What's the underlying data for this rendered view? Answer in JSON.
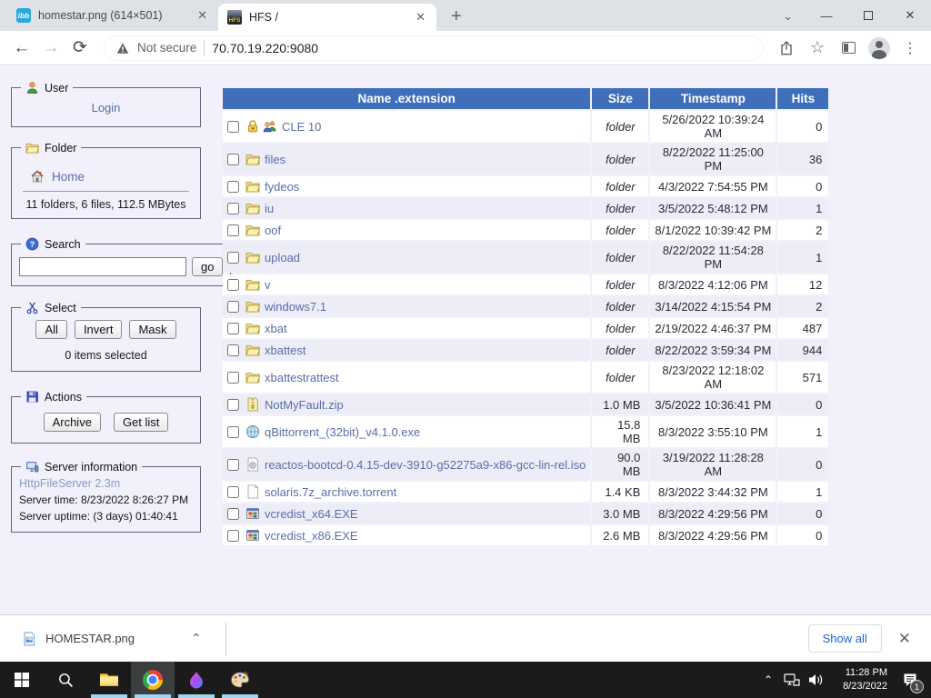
{
  "browser": {
    "tabs": [
      {
        "title": "homestar.png (614×501)",
        "favicon": "ibb-icon",
        "active": false
      },
      {
        "title": "HFS /",
        "favicon": "hfs-icon",
        "active": true
      }
    ],
    "hfs_favicon_text": "HFS",
    "ibb_favicon_text": "ibb",
    "toolbar": {
      "not_secure_label": "Not secure",
      "url": "70.70.19.220:9080"
    }
  },
  "sidebar": {
    "user_panel": {
      "title": "User",
      "login_label": "Login"
    },
    "folder_panel": {
      "title": "Folder",
      "home_label": "Home",
      "stats": "11 folders, 6 files, 112.5 MBytes"
    },
    "search_panel": {
      "title": "Search",
      "input_value": "",
      "go_label": "go"
    },
    "select_panel": {
      "title": "Select",
      "buttons": [
        "All",
        "Invert",
        "Mask"
      ],
      "status": "0 items selected"
    },
    "actions_panel": {
      "title": "Actions",
      "buttons": [
        "Archive",
        "Get list"
      ]
    },
    "server_panel": {
      "title": "Server information",
      "server_name": "HttpFileServer 2.3m",
      "server_time": "Server time: 8/23/2022 8:26:27 PM",
      "server_uptime": "Server uptime: (3 days) 01:40:41"
    }
  },
  "table": {
    "headers": [
      "Name .extension",
      "Size",
      "Timestamp",
      "Hits"
    ],
    "rows": [
      {
        "name": "CLE 10",
        "icons": [
          "lock-icon",
          "group-icon"
        ],
        "size": "folder",
        "timestamp": "5/26/2022 10:39:24 AM",
        "hits": "0"
      },
      {
        "name": "files",
        "icons": [
          "folder-icon"
        ],
        "size": "folder",
        "timestamp": "8/22/2022 11:25:00 PM",
        "hits": "36"
      },
      {
        "name": "fydeos",
        "icons": [
          "folder-icon"
        ],
        "size": "folder",
        "timestamp": "4/3/2022 7:54:55 PM",
        "hits": "0"
      },
      {
        "name": "iu",
        "icons": [
          "folder-icon"
        ],
        "size": "folder",
        "timestamp": "3/5/2022 5:48:12 PM",
        "hits": "1"
      },
      {
        "name": "oof",
        "icons": [
          "folder-icon"
        ],
        "size": "folder",
        "timestamp": "8/1/2022 10:39:42 PM",
        "hits": "2"
      },
      {
        "name": "upload",
        "icons": [
          "folder-icon"
        ],
        "size": "folder",
        "timestamp": "8/22/2022 11:54:28 PM",
        "hits": "1"
      },
      {
        "name": "v",
        "icons": [
          "folder-icon"
        ],
        "size": "folder",
        "timestamp": "8/3/2022 4:12:06 PM",
        "hits": "12"
      },
      {
        "name": "windows7.1",
        "icons": [
          "folder-icon"
        ],
        "size": "folder",
        "timestamp": "3/14/2022 4:15:54 PM",
        "hits": "2"
      },
      {
        "name": "xbat",
        "icons": [
          "folder-icon"
        ],
        "size": "folder",
        "timestamp": "2/19/2022 4:46:37 PM",
        "hits": "487"
      },
      {
        "name": "xbattest",
        "icons": [
          "folder-icon"
        ],
        "size": "folder",
        "timestamp": "8/22/2022 3:59:34 PM",
        "hits": "944"
      },
      {
        "name": "xbattestrattest",
        "icons": [
          "folder-icon"
        ],
        "size": "folder",
        "timestamp": "8/23/2022 12:18:02 AM",
        "hits": "571"
      },
      {
        "name": "NotMyFault.zip",
        "icons": [
          "zip-icon"
        ],
        "size": "1.0 MB",
        "timestamp": "3/5/2022 10:36:41 PM",
        "hits": "0"
      },
      {
        "name": "qBittorrent_(32bit)_v4.1.0.exe",
        "icons": [
          "app-icon"
        ],
        "size": "15.8 MB",
        "timestamp": "8/3/2022 3:55:10 PM",
        "hits": "1"
      },
      {
        "name": "reactos-bootcd-0.4.15-dev-3910-g52275a9-x86-gcc-lin-rel.iso",
        "icons": [
          "iso-icon"
        ],
        "size": "90.0 MB",
        "timestamp": "3/19/2022 11:28:28 AM",
        "hits": "0"
      },
      {
        "name": "solaris.7z_archive.torrent",
        "icons": [
          "torrent-icon"
        ],
        "size": "1.4 KB",
        "timestamp": "8/3/2022 3:44:32 PM",
        "hits": "1"
      },
      {
        "name": "vcredist_x64.EXE",
        "icons": [
          "exe-icon"
        ],
        "size": "3.0 MB",
        "timestamp": "8/3/2022 4:29:56 PM",
        "hits": "0"
      },
      {
        "name": "vcredist_x86.EXE",
        "icons": [
          "exe-icon"
        ],
        "size": "2.6 MB",
        "timestamp": "8/3/2022 4:29:56 PM",
        "hits": "0"
      }
    ]
  },
  "download_bar": {
    "file_name": "HOMESTAR.png",
    "show_all_label": "Show all"
  },
  "taskbar": {
    "clock_time": "11:28 PM",
    "clock_date": "8/23/2022",
    "notification_count": "1"
  },
  "colors": {
    "table_header_bg": "#3f6fba",
    "row_alt_bg": "#ededf8",
    "link": "#5b6caa",
    "accent_blue": "#1967d2",
    "page_bg": "#f2f1fb",
    "taskbar_indicator": "#9ed5ef"
  }
}
